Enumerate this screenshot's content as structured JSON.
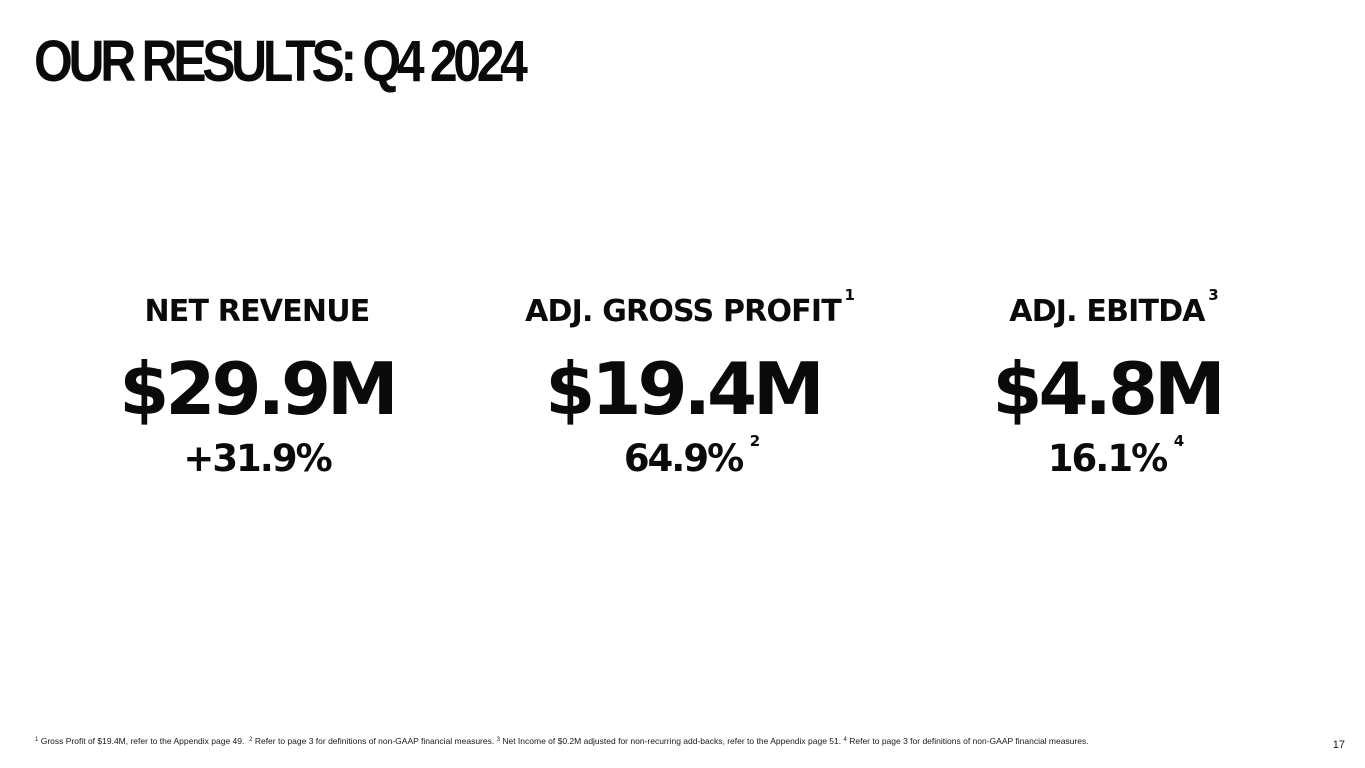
{
  "title": "OUR RESULTS: Q4 2024",
  "metrics": [
    {
      "label": "NET REVENUE",
      "label_ref": "",
      "value": "$29.9M",
      "sub": "+31.9%",
      "sub_ref": ""
    },
    {
      "label": "ADJ. GROSS PROFIT",
      "label_ref": "1",
      "value": "$19.4M",
      "sub": "64.9%",
      "sub_ref": "2"
    },
    {
      "label": "ADJ. EBITDA",
      "label_ref": "3",
      "value": "$4.8M",
      "sub": "16.1%",
      "sub_ref": "4"
    }
  ],
  "footnotes": [
    {
      "ref": "1",
      "text": "Gross Profit of $19.4M, refer to the Appendix page 49."
    },
    {
      "ref": "2",
      "text": "Refer to page 3 for definitions of non-GAAP financial measures."
    },
    {
      "ref": "3",
      "text": "Net Income of $0.2M adjusted for non-recurring add-backs, refer to the Appendix page 51."
    },
    {
      "ref": "4",
      "text": "Refer to page 3 for definitions of non-GAAP financial measures."
    }
  ],
  "page_number": "17"
}
